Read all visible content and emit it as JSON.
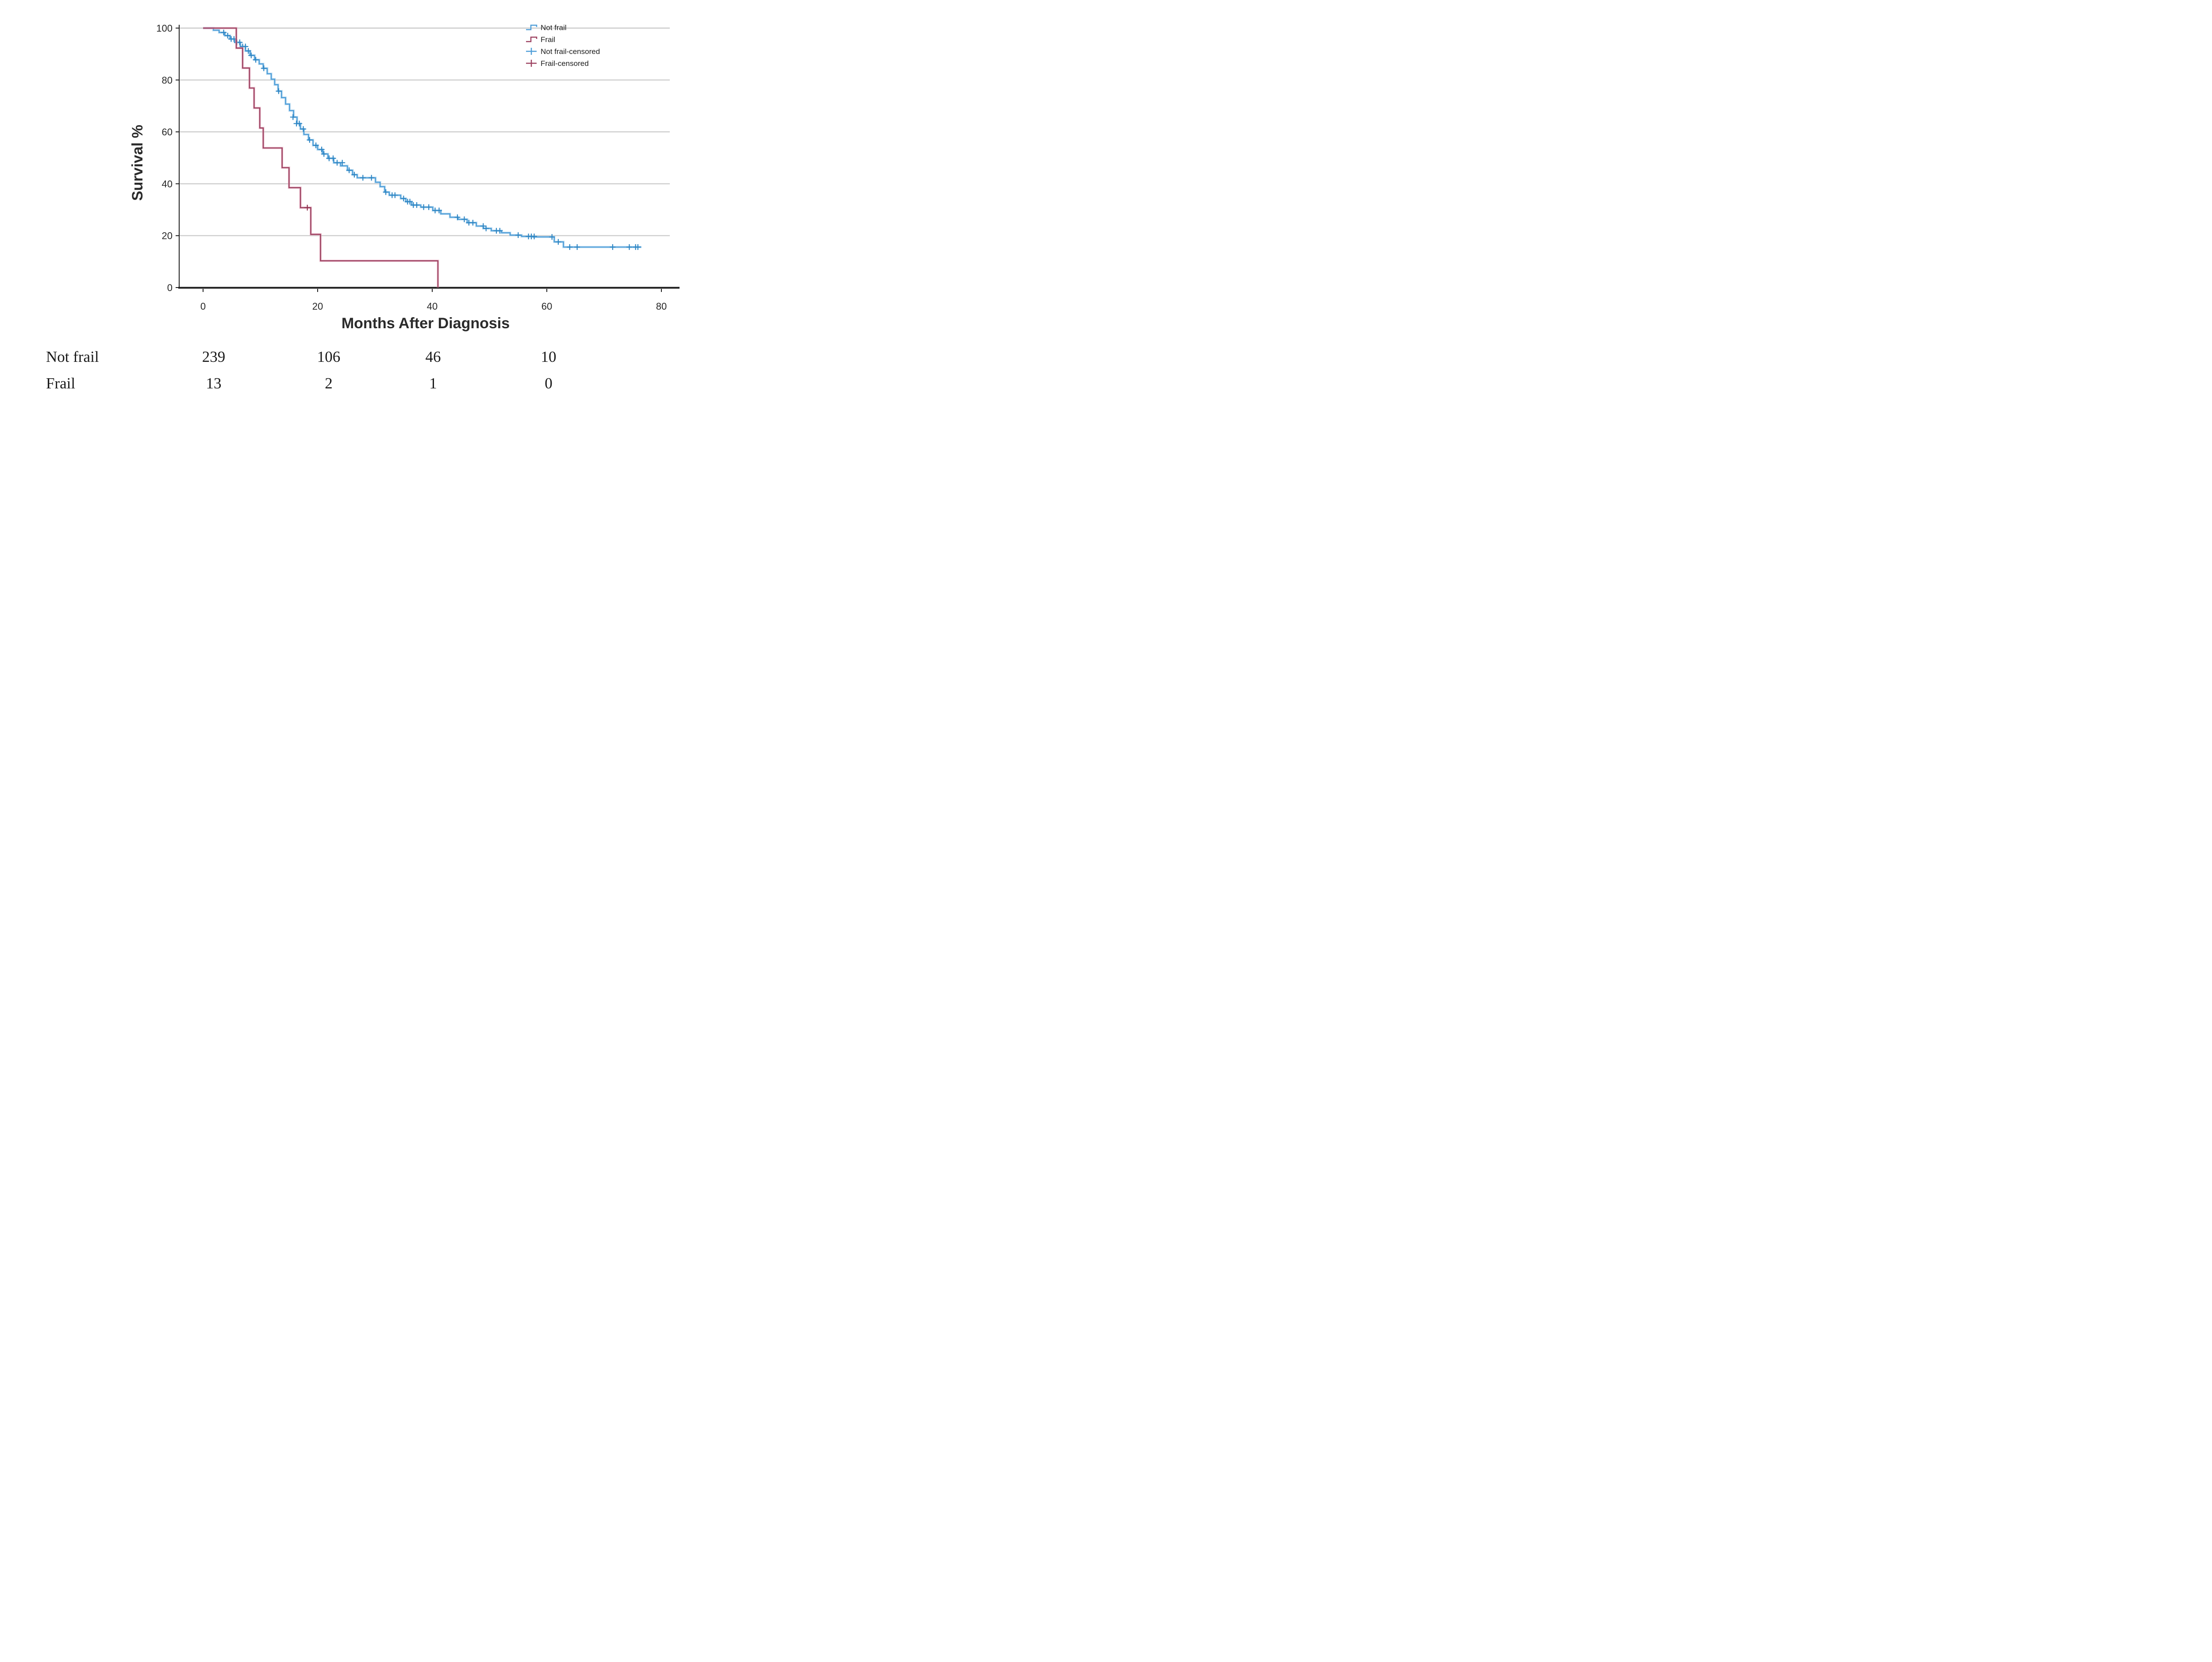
{
  "chart_data": {
    "type": "line",
    "subtype": "kaplan-meier-step-curves",
    "title": "",
    "xlabel": "Months After Diagnosis",
    "ylabel": "Survival %",
    "xticks": [
      0,
      20,
      40,
      60,
      80
    ],
    "yticks": [
      100,
      80,
      60,
      40,
      20,
      0
    ],
    "xlim": [
      0,
      82
    ],
    "ylim": [
      0,
      100
    ],
    "grid": "horizontal-light-gray",
    "legend_position": "top-right-inside",
    "legend": [
      "Not frail",
      "Frail",
      "Not frail-censored",
      "Frail-censored"
    ],
    "series": [
      {
        "name": "Not frail",
        "color": "#4f9ed8",
        "halo_color": "#a9d3ee",
        "censor_color": "#2e86c4",
        "steps": [
          [
            0,
            100
          ],
          [
            1.8,
            100
          ],
          [
            1.8,
            99.2
          ],
          [
            2.8,
            99.2
          ],
          [
            2.8,
            98.3
          ],
          [
            3.8,
            98.3
          ],
          [
            3.8,
            97.1
          ],
          [
            4.7,
            97.1
          ],
          [
            4.7,
            95.8
          ],
          [
            5.6,
            95.8
          ],
          [
            5.6,
            94.5
          ],
          [
            6.5,
            94.5
          ],
          [
            6.5,
            92.9
          ],
          [
            7.4,
            92.9
          ],
          [
            7.4,
            91.2
          ],
          [
            8.2,
            91.2
          ],
          [
            8.2,
            89.5
          ],
          [
            9,
            89.5
          ],
          [
            9,
            87.8
          ],
          [
            9.8,
            87.8
          ],
          [
            9.8,
            86.2
          ],
          [
            10.5,
            86.2
          ],
          [
            10.5,
            84.5
          ],
          [
            11.2,
            84.5
          ],
          [
            11.2,
            82.4
          ],
          [
            11.9,
            82.4
          ],
          [
            11.9,
            80.3
          ],
          [
            12.5,
            80.3
          ],
          [
            12.5,
            78.2
          ],
          [
            13.1,
            78.2
          ],
          [
            13.1,
            75.7
          ],
          [
            13.7,
            75.7
          ],
          [
            13.7,
            73.2
          ],
          [
            14.4,
            73.2
          ],
          [
            14.4,
            70.7
          ],
          [
            15.1,
            70.7
          ],
          [
            15.1,
            68.2
          ],
          [
            15.8,
            68.2
          ],
          [
            15.8,
            65.7
          ],
          [
            16.4,
            65.7
          ],
          [
            16.4,
            63.2
          ],
          [
            17,
            63.2
          ],
          [
            17,
            61.1
          ],
          [
            17.6,
            61.1
          ],
          [
            17.6,
            59
          ],
          [
            18.4,
            59
          ],
          [
            18.4,
            56.9
          ],
          [
            19.2,
            56.9
          ],
          [
            19.2,
            54.8
          ],
          [
            20,
            54.8
          ],
          [
            20,
            53.2
          ],
          [
            20.9,
            53.2
          ],
          [
            20.9,
            51.5
          ],
          [
            21.8,
            51.5
          ],
          [
            21.8,
            49.8
          ],
          [
            22.8,
            49.8
          ],
          [
            22.8,
            48.1
          ],
          [
            24,
            48.1
          ],
          [
            24,
            46.9
          ],
          [
            25.2,
            46.9
          ],
          [
            25.2,
            45.2
          ],
          [
            26.1,
            45.2
          ],
          [
            26.1,
            43.5
          ],
          [
            26.9,
            43.5
          ],
          [
            26.9,
            42.3
          ],
          [
            30.1,
            42.3
          ],
          [
            30.1,
            40.6
          ],
          [
            30.9,
            40.6
          ],
          [
            30.9,
            38.9
          ],
          [
            31.7,
            38.9
          ],
          [
            31.7,
            36.8
          ],
          [
            32.5,
            36.8
          ],
          [
            32.5,
            35.6
          ],
          [
            34.5,
            35.6
          ],
          [
            34.5,
            34.3
          ],
          [
            35.4,
            34.3
          ],
          [
            35.4,
            33.1
          ],
          [
            36.4,
            33.1
          ],
          [
            36.4,
            31.8
          ],
          [
            38,
            31.8
          ],
          [
            38,
            31
          ],
          [
            40.1,
            31
          ],
          [
            40.1,
            29.7
          ],
          [
            41.5,
            29.7
          ],
          [
            41.5,
            28.4
          ],
          [
            43.1,
            28.4
          ],
          [
            43.1,
            27.1
          ],
          [
            44.5,
            27.1
          ],
          [
            44.5,
            26.3
          ],
          [
            46.1,
            26.3
          ],
          [
            46.1,
            25
          ],
          [
            47.7,
            25
          ],
          [
            47.7,
            23.7
          ],
          [
            48.9,
            23.7
          ],
          [
            48.9,
            22.8
          ],
          [
            50.3,
            22.8
          ],
          [
            50.3,
            21.9
          ],
          [
            52.1,
            21.9
          ],
          [
            52.1,
            21.1
          ],
          [
            53.6,
            21.1
          ],
          [
            53.6,
            20.2
          ],
          [
            55.6,
            20.2
          ],
          [
            55.6,
            19.7
          ],
          [
            57.6,
            19.7
          ],
          [
            57.6,
            19.5
          ],
          [
            61.3,
            19.5
          ],
          [
            61.3,
            17.6
          ],
          [
            62.9,
            17.6
          ],
          [
            62.9,
            15.6
          ],
          [
            76.5,
            15.6
          ]
        ],
        "censored": [
          [
            3.6,
            98.3
          ],
          [
            4.3,
            97.1
          ],
          [
            4.9,
            95.8
          ],
          [
            5.4,
            95.8
          ],
          [
            5.9,
            94.5
          ],
          [
            6.4,
            94.5
          ],
          [
            6.9,
            92.9
          ],
          [
            7.4,
            92.9
          ],
          [
            7.9,
            91.2
          ],
          [
            8.4,
            89.5
          ],
          [
            9.2,
            87.8
          ],
          [
            10.6,
            84.5
          ],
          [
            13.2,
            75.7
          ],
          [
            15.7,
            65.7
          ],
          [
            16.3,
            63.2
          ],
          [
            16.8,
            63.2
          ],
          [
            17.5,
            61.1
          ],
          [
            18.6,
            56.9
          ],
          [
            19.7,
            54.8
          ],
          [
            20.7,
            53.2
          ],
          [
            21.1,
            51.5
          ],
          [
            22,
            49.8
          ],
          [
            22.7,
            49.8
          ],
          [
            23.4,
            48.1
          ],
          [
            24.3,
            48.1
          ],
          [
            25.5,
            45.2
          ],
          [
            26.4,
            43.5
          ],
          [
            27.9,
            42.3
          ],
          [
            29.4,
            42.3
          ],
          [
            31.9,
            36.8
          ],
          [
            33,
            35.6
          ],
          [
            33.5,
            35.6
          ],
          [
            35,
            34.3
          ],
          [
            35.7,
            33.1
          ],
          [
            36.1,
            33.1
          ],
          [
            36.7,
            31.8
          ],
          [
            37.3,
            31.8
          ],
          [
            38.5,
            31
          ],
          [
            39.4,
            31
          ],
          [
            40.5,
            29.7
          ],
          [
            41.2,
            29.7
          ],
          [
            44.4,
            27.1
          ],
          [
            45.6,
            26.3
          ],
          [
            46.4,
            25
          ],
          [
            47.1,
            25
          ],
          [
            48.9,
            23.7
          ],
          [
            49.4,
            22.8
          ],
          [
            51.2,
            21.9
          ],
          [
            51.8,
            21.9
          ],
          [
            55,
            20.2
          ],
          [
            56.8,
            19.7
          ],
          [
            57.3,
            19.7
          ],
          [
            57.8,
            19.7
          ],
          [
            60.9,
            19.5
          ],
          [
            62,
            17.6
          ],
          [
            64,
            15.6
          ],
          [
            65.3,
            15.6
          ],
          [
            71.5,
            15.6
          ],
          [
            74.4,
            15.6
          ],
          [
            75.5,
            15.6
          ],
          [
            75.9,
            15.6
          ]
        ]
      },
      {
        "name": "Frail",
        "color": "#9c4160",
        "halo_color": "#e9aabf",
        "censor_color": "#8f3350",
        "steps": [
          [
            0,
            100
          ],
          [
            5.8,
            100
          ],
          [
            5.8,
            92.3
          ],
          [
            6.9,
            92.3
          ],
          [
            6.9,
            84.6
          ],
          [
            8.1,
            84.6
          ],
          [
            8.1,
            76.9
          ],
          [
            8.9,
            76.9
          ],
          [
            8.9,
            69.2
          ],
          [
            9.9,
            69.2
          ],
          [
            9.9,
            61.5
          ],
          [
            10.5,
            61.5
          ],
          [
            10.5,
            53.8
          ],
          [
            13.8,
            53.8
          ],
          [
            13.8,
            46.2
          ],
          [
            15,
            46.2
          ],
          [
            15,
            38.5
          ],
          [
            17,
            38.5
          ],
          [
            17,
            30.8
          ],
          [
            18.8,
            30.8
          ],
          [
            18.8,
            20.5
          ],
          [
            20.5,
            20.5
          ],
          [
            20.5,
            10.3
          ],
          [
            41,
            10.3
          ],
          [
            41,
            0
          ]
        ],
        "censored": [
          [
            18.2,
            30.8
          ]
        ]
      }
    ]
  },
  "risk_table": {
    "rows": [
      {
        "label": "Not frail",
        "counts": [
          "239",
          "106",
          "46",
          "10"
        ]
      },
      {
        "label": "Frail",
        "counts": [
          "13",
          "2",
          "1",
          "0"
        ]
      }
    ]
  },
  "colors": {
    "gridline": "#cccccc",
    "axis": "#1c1c1c",
    "text": "#262626",
    "background": "#ffffff",
    "not_frail": "#4f9ed8",
    "frail": "#9c4160"
  }
}
